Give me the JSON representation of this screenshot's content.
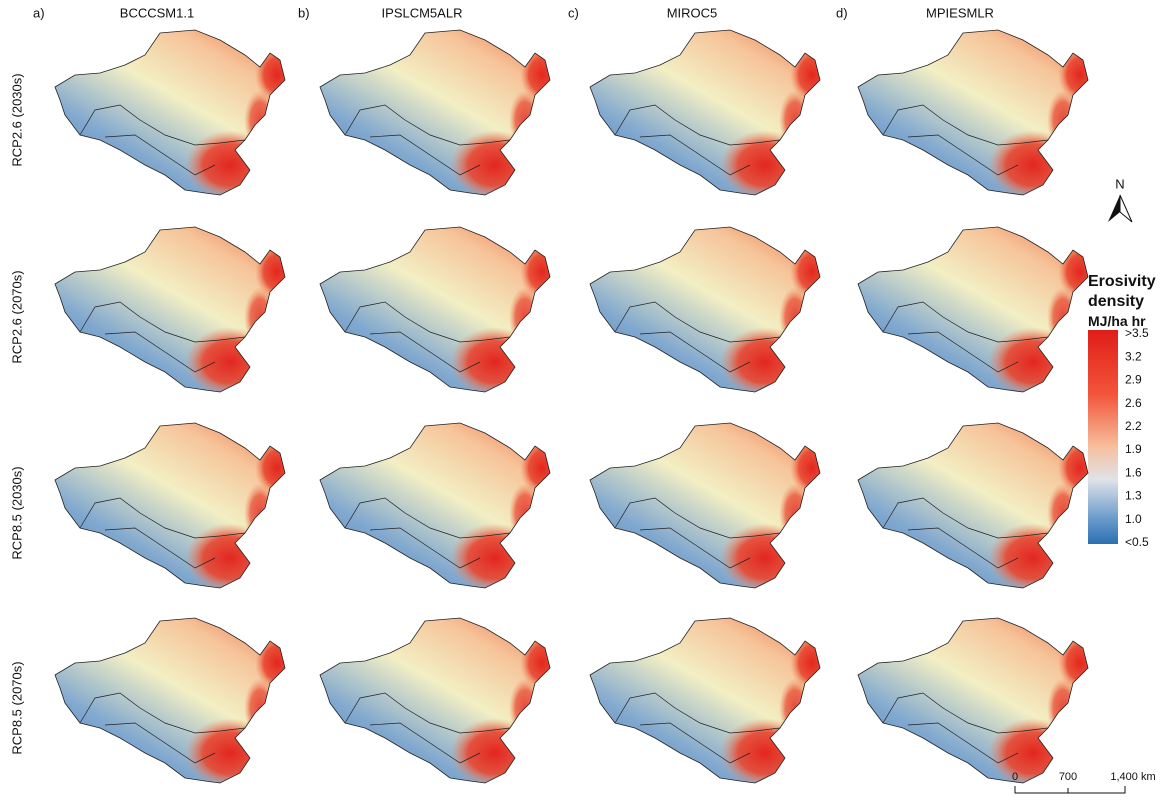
{
  "columns": [
    {
      "letter": "a)",
      "model": "BCCCSM1.1"
    },
    {
      "letter": "b)",
      "model": "IPSLCM5ALR"
    },
    {
      "letter": "c)",
      "model": "MIROC5"
    },
    {
      "letter": "d)",
      "model": "MPIESMLR"
    }
  ],
  "rows": [
    "RCP2.6 (2030s)",
    "RCP2.6 (2070s)",
    "RCP8.5 (2030s)",
    "RCP8.5 (2070s)"
  ],
  "north": "N",
  "legend": {
    "title": "Erosivity density",
    "unit": "MJ/ha hr",
    "labels": [
      ">3.5",
      "3.2",
      "2.9",
      "2.6",
      "2.2",
      "1.9",
      "1.6",
      "1.3",
      "1.0",
      "<0.5"
    ]
  },
  "scale_bar": [
    "0",
    "700",
    "1,400 km"
  ]
}
